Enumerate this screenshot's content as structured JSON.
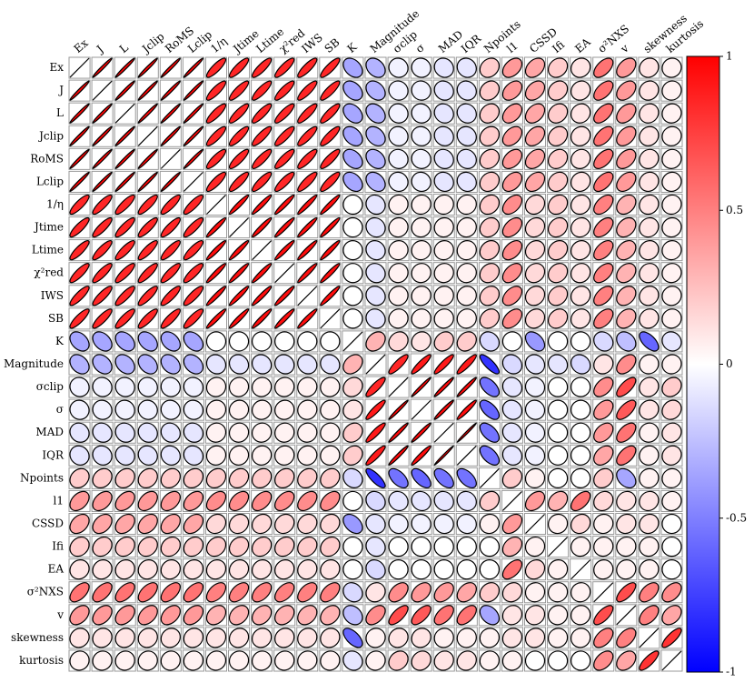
{
  "chart_data": {
    "type": "correlation-ellipse",
    "labels": [
      "Ex",
      "J",
      "L",
      "Jclip",
      "RoMS",
      "Lclip",
      "1/η",
      "Jtime",
      "Ltime",
      "χ²red",
      "IWS",
      "SB",
      "K",
      "Magnitude",
      "σclip",
      "σ",
      "MAD",
      "IQR",
      "Npoints",
      "l1",
      "CSSD",
      "Ifi",
      "EA",
      "σ²NXS",
      "v",
      "skewness",
      "kurtosis"
    ],
    "values": [
      [
        1,
        0.98,
        0.98,
        0.98,
        0.98,
        0.98,
        0.85,
        0.85,
        0.85,
        0.85,
        0.85,
        0.85,
        -0.35,
        -0.3,
        -0.05,
        -0.05,
        -0.1,
        -0.1,
        0.2,
        0.4,
        0.35,
        0.2,
        0.1,
        0.55,
        0.4,
        0.1,
        0.05
      ],
      [
        0.98,
        1,
        0.98,
        0.98,
        0.98,
        0.98,
        0.85,
        0.85,
        0.85,
        0.85,
        0.85,
        0.85,
        -0.35,
        -0.3,
        -0.05,
        -0.05,
        -0.1,
        -0.1,
        0.2,
        0.4,
        0.35,
        0.2,
        0.1,
        0.55,
        0.4,
        0.1,
        0.05
      ],
      [
        0.98,
        0.98,
        1,
        0.98,
        0.98,
        0.98,
        0.85,
        0.85,
        0.85,
        0.85,
        0.85,
        0.85,
        -0.35,
        -0.3,
        -0.05,
        -0.05,
        -0.1,
        -0.1,
        0.2,
        0.4,
        0.35,
        0.2,
        0.1,
        0.55,
        0.4,
        0.1,
        0.05
      ],
      [
        0.98,
        0.98,
        0.98,
        1,
        0.98,
        0.98,
        0.85,
        0.85,
        0.85,
        0.85,
        0.85,
        0.85,
        -0.35,
        -0.3,
        -0.05,
        -0.05,
        -0.1,
        -0.1,
        0.2,
        0.4,
        0.35,
        0.2,
        0.1,
        0.55,
        0.4,
        0.1,
        0.05
      ],
      [
        0.98,
        0.98,
        0.98,
        0.98,
        1,
        0.98,
        0.85,
        0.85,
        0.85,
        0.85,
        0.85,
        0.85,
        -0.35,
        -0.3,
        -0.05,
        -0.05,
        -0.1,
        -0.1,
        0.2,
        0.4,
        0.35,
        0.2,
        0.1,
        0.55,
        0.4,
        0.1,
        0.05
      ],
      [
        0.98,
        0.98,
        0.98,
        0.98,
        0.98,
        1,
        0.85,
        0.85,
        0.85,
        0.85,
        0.85,
        0.85,
        -0.35,
        -0.3,
        -0.05,
        -0.05,
        -0.1,
        -0.1,
        0.2,
        0.4,
        0.35,
        0.2,
        0.1,
        0.55,
        0.4,
        0.1,
        0.05
      ],
      [
        0.85,
        0.85,
        0.85,
        0.85,
        0.85,
        0.85,
        1,
        0.95,
        0.95,
        0.95,
        0.95,
        0.95,
        0,
        -0.1,
        0.05,
        0.05,
        0.05,
        0.05,
        0.2,
        0.45,
        0.15,
        0.2,
        0.1,
        0.5,
        0.3,
        0.1,
        0.05
      ],
      [
        0.85,
        0.85,
        0.85,
        0.85,
        0.85,
        0.85,
        0.95,
        1,
        0.95,
        0.95,
        0.95,
        0.95,
        0,
        -0.1,
        0.05,
        0.05,
        0.05,
        0.05,
        0.2,
        0.45,
        0.15,
        0.2,
        0.1,
        0.5,
        0.3,
        0.1,
        0.05
      ],
      [
        0.85,
        0.85,
        0.85,
        0.85,
        0.85,
        0.85,
        0.95,
        0.95,
        1,
        0.95,
        0.95,
        0.95,
        0,
        -0.1,
        0.05,
        0.05,
        0.05,
        0.05,
        0.2,
        0.45,
        0.15,
        0.2,
        0.1,
        0.5,
        0.3,
        0.1,
        0.05
      ],
      [
        0.85,
        0.85,
        0.85,
        0.85,
        0.85,
        0.85,
        0.95,
        0.95,
        0.95,
        1,
        0.95,
        0.95,
        0,
        -0.1,
        0.05,
        0.05,
        0.05,
        0.05,
        0.2,
        0.45,
        0.15,
        0.2,
        0.1,
        0.5,
        0.3,
        0.1,
        0.05
      ],
      [
        0.85,
        0.85,
        0.85,
        0.85,
        0.85,
        0.85,
        0.95,
        0.95,
        0.95,
        0.95,
        1,
        0.95,
        0,
        -0.1,
        0.05,
        0.05,
        0.05,
        0.05,
        0.2,
        0.45,
        0.15,
        0.2,
        0.1,
        0.5,
        0.3,
        0.1,
        0.05
      ],
      [
        0.85,
        0.85,
        0.85,
        0.85,
        0.85,
        0.85,
        0.95,
        0.95,
        0.95,
        0.95,
        0.95,
        1,
        0,
        -0.1,
        0.05,
        0.05,
        0.05,
        0.05,
        0.2,
        0.45,
        0.15,
        0.2,
        0.1,
        0.5,
        0.3,
        0.1,
        0.05
      ],
      [
        -0.35,
        -0.35,
        -0.35,
        -0.35,
        -0.35,
        -0.35,
        0,
        0,
        0,
        0,
        0,
        0,
        1,
        0.3,
        0.15,
        0.1,
        0.2,
        0.2,
        -0.15,
        0,
        -0.4,
        0,
        0,
        -0.15,
        -0.25,
        -0.6,
        -0.1
      ],
      [
        -0.3,
        -0.3,
        -0.3,
        -0.3,
        -0.3,
        -0.3,
        -0.1,
        -0.1,
        -0.1,
        -0.1,
        -0.1,
        -0.1,
        0.3,
        1,
        0.85,
        0.9,
        0.9,
        0.9,
        -0.8,
        -0.15,
        -0.1,
        -0.1,
        -0.15,
        0.1,
        0.45,
        0.05,
        0.05
      ],
      [
        -0.05,
        -0.05,
        -0.05,
        -0.05,
        -0.05,
        -0.05,
        0.05,
        0.05,
        0.05,
        0.05,
        0.05,
        0.05,
        0.15,
        0.85,
        1,
        0.98,
        0.97,
        0.97,
        -0.55,
        -0.1,
        -0.05,
        0,
        0,
        0.45,
        0.7,
        0.1,
        0.2
      ],
      [
        -0.05,
        -0.05,
        -0.05,
        -0.05,
        -0.05,
        -0.05,
        0.05,
        0.05,
        0.05,
        0.05,
        0.05,
        0.05,
        0.1,
        0.9,
        0.98,
        1,
        0.97,
        0.95,
        -0.6,
        -0.1,
        -0.05,
        0,
        0,
        0.4,
        0.65,
        0.1,
        0.15
      ],
      [
        -0.1,
        -0.1,
        -0.1,
        -0.1,
        -0.1,
        -0.1,
        0.05,
        0.05,
        0.05,
        0.05,
        0.05,
        0.05,
        0.2,
        0.9,
        0.97,
        0.97,
        1,
        0.99,
        -0.55,
        -0.1,
        -0.05,
        0,
        0,
        0.4,
        0.55,
        0.05,
        0.1
      ],
      [
        -0.1,
        -0.1,
        -0.1,
        -0.1,
        -0.1,
        -0.1,
        0.05,
        0.05,
        0.05,
        0.05,
        0.05,
        0.05,
        0.2,
        0.9,
        0.97,
        0.95,
        0.99,
        1,
        -0.55,
        -0.1,
        -0.05,
        0,
        0,
        0.35,
        0.55,
        0.05,
        0.1
      ],
      [
        0.2,
        0.2,
        0.2,
        0.2,
        0.2,
        0.2,
        0.2,
        0.2,
        0.2,
        0.2,
        0.2,
        0.2,
        -0.15,
        -0.8,
        -0.55,
        -0.6,
        -0.55,
        -0.55,
        1,
        0.2,
        0.05,
        0,
        0,
        0.2,
        -0.35,
        0.05,
        0.05
      ],
      [
        0.4,
        0.4,
        0.4,
        0.4,
        0.4,
        0.4,
        0.45,
        0.45,
        0.45,
        0.45,
        0.45,
        0.45,
        0,
        -0.15,
        -0.1,
        -0.1,
        -0.1,
        -0.1,
        0.2,
        1,
        0.4,
        0.3,
        0.55,
        0.15,
        0.1,
        0.1,
        0.05
      ],
      [
        0.35,
        0.35,
        0.35,
        0.35,
        0.35,
        0.35,
        0.15,
        0.15,
        0.15,
        0.15,
        0.15,
        0.15,
        -0.4,
        -0.1,
        -0.05,
        -0.05,
        -0.05,
        -0.05,
        0.05,
        0.4,
        1,
        0.05,
        0.15,
        0.05,
        0.1,
        0.1,
        0
      ],
      [
        0.2,
        0.2,
        0.2,
        0.2,
        0.2,
        0.2,
        0.2,
        0.2,
        0.2,
        0.2,
        0.2,
        0.2,
        0,
        -0.1,
        0,
        0,
        0,
        0,
        0,
        0.3,
        0.05,
        1,
        0.05,
        0.05,
        0.05,
        0.05,
        0
      ],
      [
        0.1,
        0.1,
        0.1,
        0.1,
        0.1,
        0.1,
        0.1,
        0.1,
        0.1,
        0.1,
        0.1,
        0.1,
        0,
        -0.15,
        0,
        0,
        0,
        0,
        0,
        0.55,
        0.15,
        0.05,
        1,
        0.05,
        0.05,
        0.05,
        0
      ],
      [
        0.55,
        0.55,
        0.55,
        0.55,
        0.55,
        0.55,
        0.5,
        0.5,
        0.5,
        0.5,
        0.5,
        0.5,
        -0.15,
        0.1,
        0.45,
        0.4,
        0.4,
        0.35,
        0.2,
        0.15,
        0.05,
        0.05,
        0.05,
        1,
        0.7,
        0.5,
        0.45
      ],
      [
        0.4,
        0.4,
        0.4,
        0.4,
        0.4,
        0.4,
        0.3,
        0.3,
        0.3,
        0.3,
        0.3,
        0.3,
        -0.25,
        0.45,
        0.7,
        0.65,
        0.55,
        0.55,
        -0.35,
        0.1,
        0.1,
        0.05,
        0.05,
        0.7,
        1,
        0.5,
        0.35
      ],
      [
        0.1,
        0.1,
        0.1,
        0.1,
        0.1,
        0.1,
        0.1,
        0.1,
        0.1,
        0.1,
        0.1,
        0.1,
        -0.6,
        0.05,
        0.1,
        0.1,
        0.05,
        0.05,
        0.05,
        0.1,
        0.1,
        0.05,
        0.05,
        0.5,
        0.5,
        1,
        0.8
      ],
      [
        0.05,
        0.05,
        0.05,
        0.05,
        0.05,
        0.05,
        0.05,
        0.05,
        0.05,
        0.05,
        0.05,
        0.05,
        -0.1,
        0.05,
        0.2,
        0.15,
        0.1,
        0.1,
        0.05,
        0.05,
        0,
        0,
        0,
        0.45,
        0.35,
        0.8,
        1
      ]
    ],
    "clim": [
      -1,
      1
    ],
    "cticks": [
      1,
      0.5,
      0,
      -0.5,
      -1
    ],
    "colormap": [
      "#0000ff",
      "#ffffff",
      "#ff0000"
    ]
  }
}
